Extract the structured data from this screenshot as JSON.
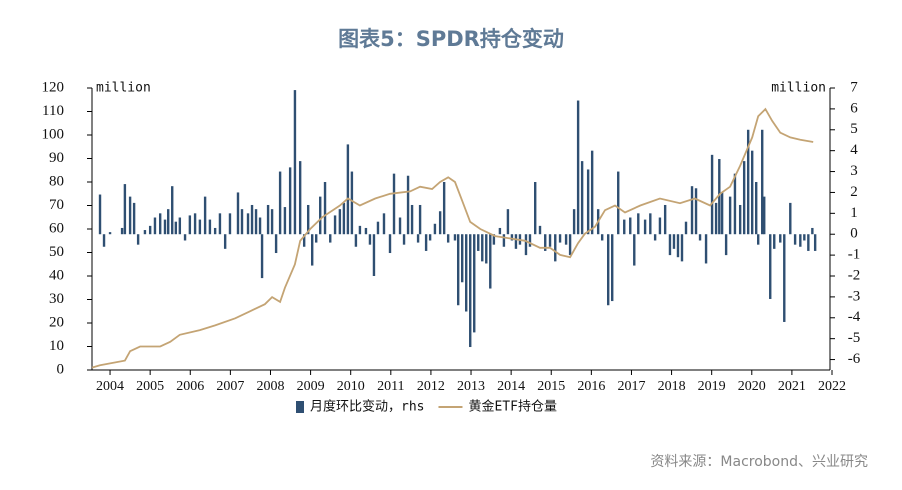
{
  "chart_data": {
    "type": "bar-line",
    "title": "图表5：SPDR持仓变动",
    "y_unit": "million",
    "y2_unit": "million",
    "source": "资料来源：Macrobond、兴业研究",
    "xlim": [
      2003.55,
      2021.95
    ],
    "xticks": [
      2004,
      2005,
      2006,
      2007,
      2008,
      2009,
      2010,
      2011,
      2012,
      2013,
      2014,
      2015,
      2016,
      2017,
      2018,
      2019,
      2020,
      2021,
      2022
    ],
    "ylim": [
      0,
      120
    ],
    "yticks": [
      0,
      10,
      20,
      30,
      40,
      50,
      60,
      70,
      80,
      90,
      100,
      110,
      120
    ],
    "y2lim": [
      -6.5,
      7
    ],
    "y2ticks": [
      -6,
      -5,
      -4,
      -3,
      -2,
      -1,
      0,
      1,
      2,
      3,
      4,
      5,
      6,
      7
    ],
    "legend": "bottom",
    "series": [
      {
        "name": "月度环比变动，rhs",
        "type": "bar",
        "axis": "y2",
        "color": "#2f4f72",
        "x": [
          2003.75,
          2003.85,
          2004.0,
          2004.3,
          2004.37,
          2004.5,
          2004.6,
          2004.7,
          2004.87,
          2005.0,
          2005.12,
          2005.25,
          2005.37,
          2005.45,
          2005.55,
          2005.64,
          2005.74,
          2005.87,
          2005.99,
          2006.12,
          2006.24,
          2006.37,
          2006.49,
          2006.62,
          2006.74,
          2006.87,
          2006.99,
          2007.19,
          2007.29,
          2007.44,
          2007.54,
          2007.64,
          2007.74,
          2007.79,
          2007.94,
          2008.04,
          2008.14,
          2008.24,
          2008.36,
          2008.49,
          2008.61,
          2008.74,
          2008.84,
          2008.94,
          2009.04,
          2009.14,
          2009.24,
          2009.36,
          2009.49,
          2009.61,
          2009.73,
          2009.83,
          2009.93,
          2010.03,
          2010.13,
          2010.23,
          2010.38,
          2010.48,
          2010.58,
          2010.68,
          2010.83,
          2010.98,
          2011.08,
          2011.23,
          2011.33,
          2011.43,
          2011.53,
          2011.68,
          2011.73,
          2011.88,
          2011.98,
          2012.1,
          2012.23,
          2012.33,
          2012.43,
          2012.6,
          2012.68,
          2012.78,
          2012.88,
          2012.98,
          2013.08,
          2013.18,
          2013.28,
          2013.38,
          2013.48,
          2013.57,
          2013.72,
          2013.82,
          2013.92,
          2014.02,
          2014.12,
          2014.22,
          2014.37,
          2014.47,
          2014.6,
          2014.72,
          2014.85,
          2014.97,
          2015.1,
          2015.22,
          2015.37,
          2015.47,
          2015.57,
          2015.67,
          2015.77,
          2015.92,
          2016.02,
          2016.17,
          2016.27,
          2016.42,
          2016.52,
          2016.67,
          2016.82,
          2016.97,
          2017.07,
          2017.17,
          2017.34,
          2017.47,
          2017.59,
          2017.71,
          2017.84,
          2017.96,
          2018.06,
          2018.16,
          2018.26,
          2018.36,
          2018.51,
          2018.61,
          2018.71,
          2018.86,
          2019.01,
          2019.11,
          2019.19,
          2019.26,
          2019.36,
          2019.46,
          2019.58,
          2019.71,
          2019.81,
          2019.91,
          2020.01,
          2020.11,
          2020.16,
          2020.26,
          2020.31,
          2020.46,
          2020.56,
          2020.71,
          2020.81,
          2020.96,
          2021.08,
          2021.21,
          2021.31,
          2021.41,
          2021.51,
          2021.58
        ],
        "values": [
          1.9,
          -0.6,
          0.1,
          0.3,
          2.4,
          1.8,
          1.5,
          -0.5,
          0.2,
          0.4,
          0.8,
          1.0,
          0.7,
          1.2,
          2.3,
          0.6,
          0.8,
          -0.3,
          0.9,
          1.0,
          0.7,
          1.8,
          0.7,
          0.3,
          1.0,
          -0.7,
          1.0,
          2.0,
          1.2,
          1.0,
          1.4,
          1.2,
          0.8,
          -2.1,
          1.4,
          1.2,
          -0.9,
          3.0,
          1.3,
          3.2,
          6.9,
          3.5,
          -0.6,
          1.4,
          -1.5,
          -0.4,
          1.8,
          2.5,
          -0.4,
          0.9,
          1.2,
          1.5,
          4.3,
          3.0,
          -0.6,
          0.4,
          0.3,
          -0.5,
          -2.0,
          0.6,
          1.0,
          -0.9,
          2.9,
          0.8,
          -0.5,
          2.8,
          1.4,
          -0.4,
          1.4,
          -0.8,
          -0.3,
          0.5,
          1.1,
          2.5,
          -0.4,
          -0.3,
          -3.4,
          -2.3,
          -3.7,
          -5.4,
          -4.7,
          -0.8,
          -1.3,
          -1.4,
          -2.6,
          -0.5,
          0.3,
          -0.6,
          1.2,
          -0.3,
          -0.7,
          -0.5,
          -1.0,
          -0.6,
          2.5,
          0.4,
          -0.8,
          -0.6,
          -1.3,
          -0.4,
          -0.5,
          -1.0,
          1.2,
          6.4,
          3.5,
          3.1,
          4.0,
          1.2,
          -0.3,
          -3.4,
          -3.2,
          3.0,
          0.7,
          0.8,
          -1.5,
          1.0,
          0.7,
          1.0,
          -0.3,
          0.8,
          1.4,
          -1.0,
          -0.7,
          -1.1,
          -1.3,
          0.6,
          2.3,
          2.2,
          -0.3,
          -1.4,
          3.8,
          1.5,
          3.6,
          2.0,
          -1.0,
          1.8,
          2.9,
          1.4,
          3.5,
          5.0,
          4.0,
          2.5,
          -0.5,
          5.0,
          1.8,
          -3.1,
          -0.7,
          -0.4,
          -4.2,
          1.5,
          -0.5,
          -0.6,
          -0.3,
          -0.8,
          0.3,
          -0.8
        ]
      },
      {
        "name": "黄金ETF持仓量",
        "type": "line",
        "axis": "y",
        "color": "#c4a474",
        "x": [
          2003.55,
          2003.75,
          2004.37,
          2004.5,
          2004.75,
          2005.25,
          2005.5,
          2005.74,
          2006.24,
          2006.62,
          2007.12,
          2007.49,
          2007.86,
          2008.04,
          2008.24,
          2008.36,
          2008.61,
          2008.74,
          2008.99,
          2009.29,
          2009.73,
          2009.93,
          2010.23,
          2010.61,
          2010.98,
          2011.48,
          2011.73,
          2012.03,
          2012.23,
          2012.43,
          2012.6,
          2012.78,
          2012.98,
          2013.23,
          2013.6,
          2013.97,
          2014.35,
          2014.72,
          2014.97,
          2015.22,
          2015.47,
          2015.67,
          2015.84,
          2016.09,
          2016.34,
          2016.59,
          2016.84,
          2017.22,
          2017.71,
          2018.21,
          2018.58,
          2018.96,
          2019.21,
          2019.46,
          2019.71,
          2020.01,
          2020.16,
          2020.34,
          2020.51,
          2020.71,
          2020.96,
          2021.21,
          2021.53
        ],
        "values": [
          1,
          2,
          4,
          8,
          10,
          10,
          12,
          15,
          17,
          19,
          22,
          25,
          28,
          31,
          29,
          35,
          45,
          55,
          60,
          65,
          70,
          73,
          70,
          73,
          75,
          76,
          78,
          77,
          80,
          82,
          80,
          72,
          63,
          60,
          57,
          56,
          55,
          52,
          52,
          49,
          48,
          54,
          58,
          61,
          68,
          70,
          67,
          70,
          73,
          71,
          73,
          70,
          75,
          78,
          87,
          99,
          108,
          111,
          106,
          101,
          99,
          98,
          97
        ]
      }
    ]
  }
}
